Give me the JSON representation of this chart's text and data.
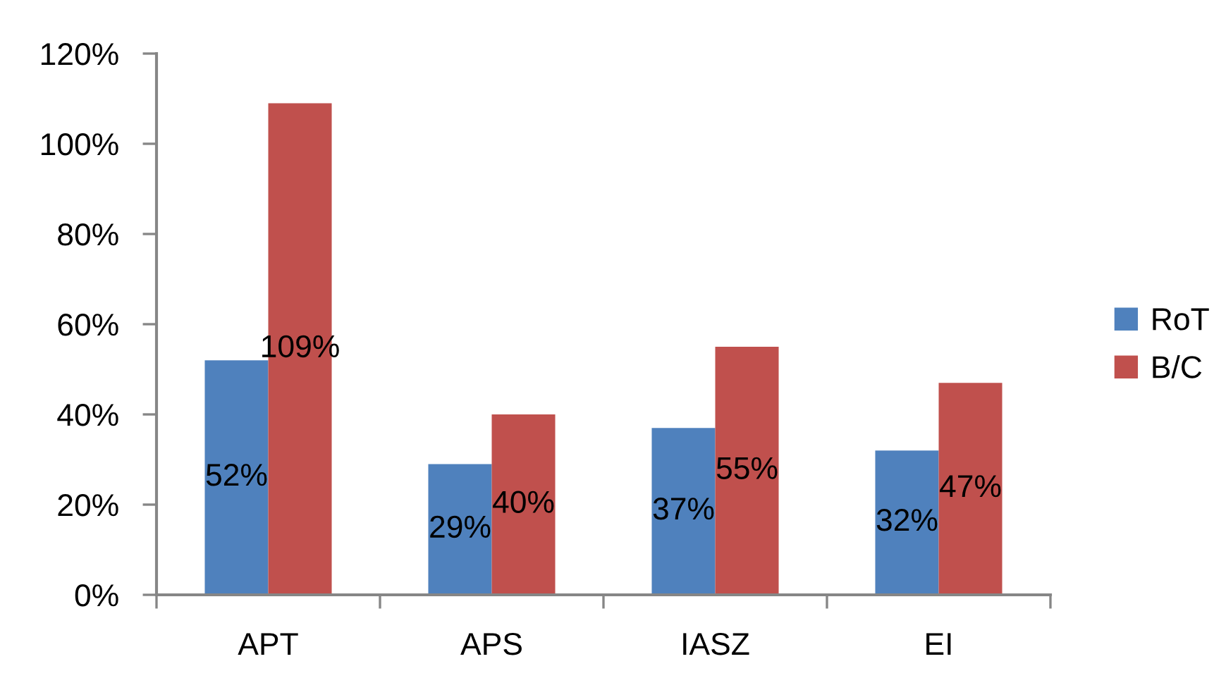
{
  "chart_data": {
    "type": "bar",
    "categories": [
      "APT",
      "APS",
      "IASZ",
      "EI"
    ],
    "series": [
      {
        "name": "RoT",
        "color": "#4f81bd",
        "values": [
          52,
          29,
          37,
          32
        ],
        "value_labels": [
          "52%",
          "29%",
          "37%",
          "32%"
        ]
      },
      {
        "name": "B/C",
        "color": "#c0504d",
        "values": [
          109,
          40,
          55,
          47
        ],
        "value_labels": [
          "109%",
          "40%",
          "55%",
          "47%"
        ]
      }
    ],
    "ylim": [
      0,
      120
    ],
    "yticks": [
      {
        "value": 0,
        "label": "0%"
      },
      {
        "value": 20,
        "label": "20%"
      },
      {
        "value": 40,
        "label": "40%"
      },
      {
        "value": 60,
        "label": "60%"
      },
      {
        "value": 80,
        "label": "80%"
      },
      {
        "value": 100,
        "label": "100%"
      },
      {
        "value": 120,
        "label": "120%"
      }
    ],
    "legend": "right"
  }
}
